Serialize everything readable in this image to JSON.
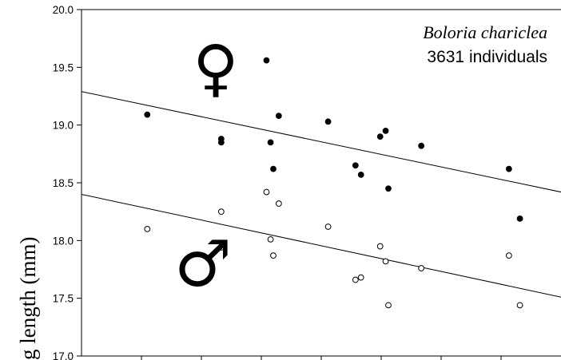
{
  "chart_data": {
    "type": "scatter",
    "title": "",
    "annotations": {
      "species": "Boloria chariclea",
      "individuals": "3631 individuals",
      "female_symbol": "♀",
      "male_symbol": "♂"
    },
    "ylabel": "g length (mm)",
    "xlabel": "",
    "ylim": [
      17.0,
      20.0
    ],
    "xlim": [
      0,
      17.5
    ],
    "y_ticks": [
      "17.0",
      "17.5",
      "18.0",
      "18.5",
      "19.0",
      "19.5",
      "20.0"
    ],
    "x_tick_count": 8,
    "grid": false,
    "series": [
      {
        "marker": "filled-circle",
        "points": [
          {
            "x": 2.4,
            "y": 19.09
          },
          {
            "x": 5.1,
            "y": 18.88
          },
          {
            "x": 5.1,
            "y": 18.85
          },
          {
            "x": 6.75,
            "y": 19.56
          },
          {
            "x": 6.9,
            "y": 18.85
          },
          {
            "x": 7.0,
            "y": 18.62
          },
          {
            "x": 7.2,
            "y": 19.08
          },
          {
            "x": 9.0,
            "y": 19.03
          },
          {
            "x": 10.0,
            "y": 18.65
          },
          {
            "x": 10.2,
            "y": 18.57
          },
          {
            "x": 10.9,
            "y": 18.9
          },
          {
            "x": 11.1,
            "y": 18.95
          },
          {
            "x": 11.2,
            "y": 18.45
          },
          {
            "x": 12.4,
            "y": 18.82
          },
          {
            "x": 15.6,
            "y": 18.62
          },
          {
            "x": 16.0,
            "y": 18.19
          }
        ],
        "trend": {
          "x": [
            0,
            17.5
          ],
          "y": [
            19.29,
            18.42
          ]
        }
      },
      {
        "marker": "open-circle",
        "points": [
          {
            "x": 2.4,
            "y": 18.1
          },
          {
            "x": 5.1,
            "y": 18.25
          },
          {
            "x": 5.1,
            "y": 17.94
          },
          {
            "x": 6.75,
            "y": 18.42
          },
          {
            "x": 6.9,
            "y": 18.01
          },
          {
            "x": 7.0,
            "y": 17.87
          },
          {
            "x": 7.2,
            "y": 18.32
          },
          {
            "x": 9.0,
            "y": 18.12
          },
          {
            "x": 10.0,
            "y": 17.66
          },
          {
            "x": 10.2,
            "y": 17.68
          },
          {
            "x": 10.9,
            "y": 17.95
          },
          {
            "x": 11.1,
            "y": 17.82
          },
          {
            "x": 11.2,
            "y": 17.44
          },
          {
            "x": 12.4,
            "y": 17.76
          },
          {
            "x": 15.6,
            "y": 17.87
          },
          {
            "x": 16.0,
            "y": 17.44
          }
        ],
        "trend": {
          "x": [
            0,
            17.5
          ],
          "y": [
            18.4,
            17.51
          ]
        }
      }
    ]
  }
}
